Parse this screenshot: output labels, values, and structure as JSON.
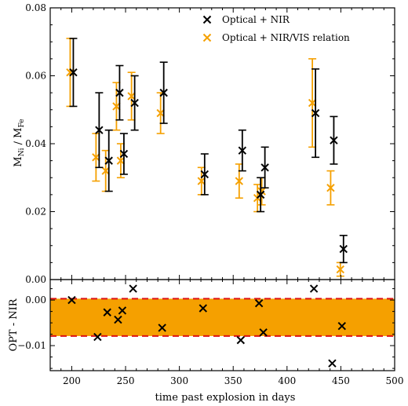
{
  "chart_data": [
    {
      "type": "scatter",
      "panel": "main",
      "title": "",
      "xlabel": "",
      "ylabel": "M_Ni / M_Fe",
      "ylabel_main": "M",
      "ylabel_sub1": "Ni",
      "ylabel_sep": " / M",
      "ylabel_sub2": "Fe",
      "xlim": [
        180,
        500
      ],
      "ylim": [
        0.0,
        0.08
      ],
      "yticks": [
        "0.00",
        "0.02",
        "0.04",
        "0.06",
        "0.08"
      ],
      "grid": false,
      "legend": "top-right",
      "series": [
        {
          "name": "Optical + NIR",
          "color": "#000000",
          "x": [
            200,
            224,
            233,
            243,
            247,
            257,
            284,
            322,
            357,
            374,
            378,
            425,
            442,
            451
          ],
          "y": [
            0.061,
            0.044,
            0.035,
            0.055,
            0.037,
            0.052,
            0.055,
            0.031,
            0.038,
            0.025,
            0.033,
            0.049,
            0.041,
            0.009
          ],
          "err_low": [
            0.01,
            0.011,
            0.009,
            0.008,
            0.006,
            0.008,
            0.009,
            0.006,
            0.006,
            0.005,
            0.006,
            0.013,
            0.007,
            0.004
          ],
          "err_high": [
            0.01,
            0.011,
            0.009,
            0.008,
            0.006,
            0.008,
            0.009,
            0.006,
            0.006,
            0.005,
            0.006,
            0.013,
            0.007,
            0.004
          ]
        },
        {
          "name": "Optical + NIR/VIS relation",
          "color": "#f5a000",
          "x": [
            200,
            224,
            233,
            243,
            247,
            257,
            284,
            322,
            357,
            374,
            378,
            425,
            442,
            451
          ],
          "y": [
            0.061,
            0.036,
            0.032,
            0.051,
            0.035,
            0.054,
            0.049,
            0.029,
            0.029,
            0.024,
            0.026,
            0.052,
            0.027,
            0.003
          ],
          "err_low": [
            0.01,
            0.007,
            0.006,
            0.007,
            0.005,
            0.007,
            0.006,
            0.004,
            0.005,
            0.004,
            0.004,
            0.013,
            0.005,
            0.002
          ],
          "err_high": [
            0.01,
            0.007,
            0.006,
            0.007,
            0.005,
            0.007,
            0.006,
            0.004,
            0.005,
            0.004,
            0.004,
            0.013,
            0.005,
            0.002
          ]
        }
      ]
    },
    {
      "type": "scatter",
      "panel": "residual",
      "xlabel": "time past explosion in days",
      "ylabel": "OPT - NIR",
      "xlim": [
        180,
        500
      ],
      "ylim": [
        -0.0155,
        0.0045
      ],
      "xticks": [
        200,
        250,
        300,
        350,
        400,
        450,
        500
      ],
      "yticks_values": [
        0.0,
        -0.01
      ],
      "yticks": [
        "0.00",
        "−0.01"
      ],
      "band": {
        "low": -0.0079,
        "high": 0.0003,
        "color": "#f5a000",
        "edge_color": "#dd1111"
      },
      "series": [
        {
          "name": "",
          "color": "#000000",
          "x": [
            200,
            224,
            233,
            243,
            247,
            257,
            284,
            322,
            357,
            374,
            378,
            425,
            442,
            451
          ],
          "y": [
            0.0,
            -0.0081,
            -0.0027,
            -0.0043,
            -0.0023,
            0.0025,
            -0.0061,
            -0.0018,
            -0.0088,
            -0.0007,
            -0.0071,
            0.0025,
            -0.0139,
            -0.0057
          ]
        }
      ]
    }
  ]
}
